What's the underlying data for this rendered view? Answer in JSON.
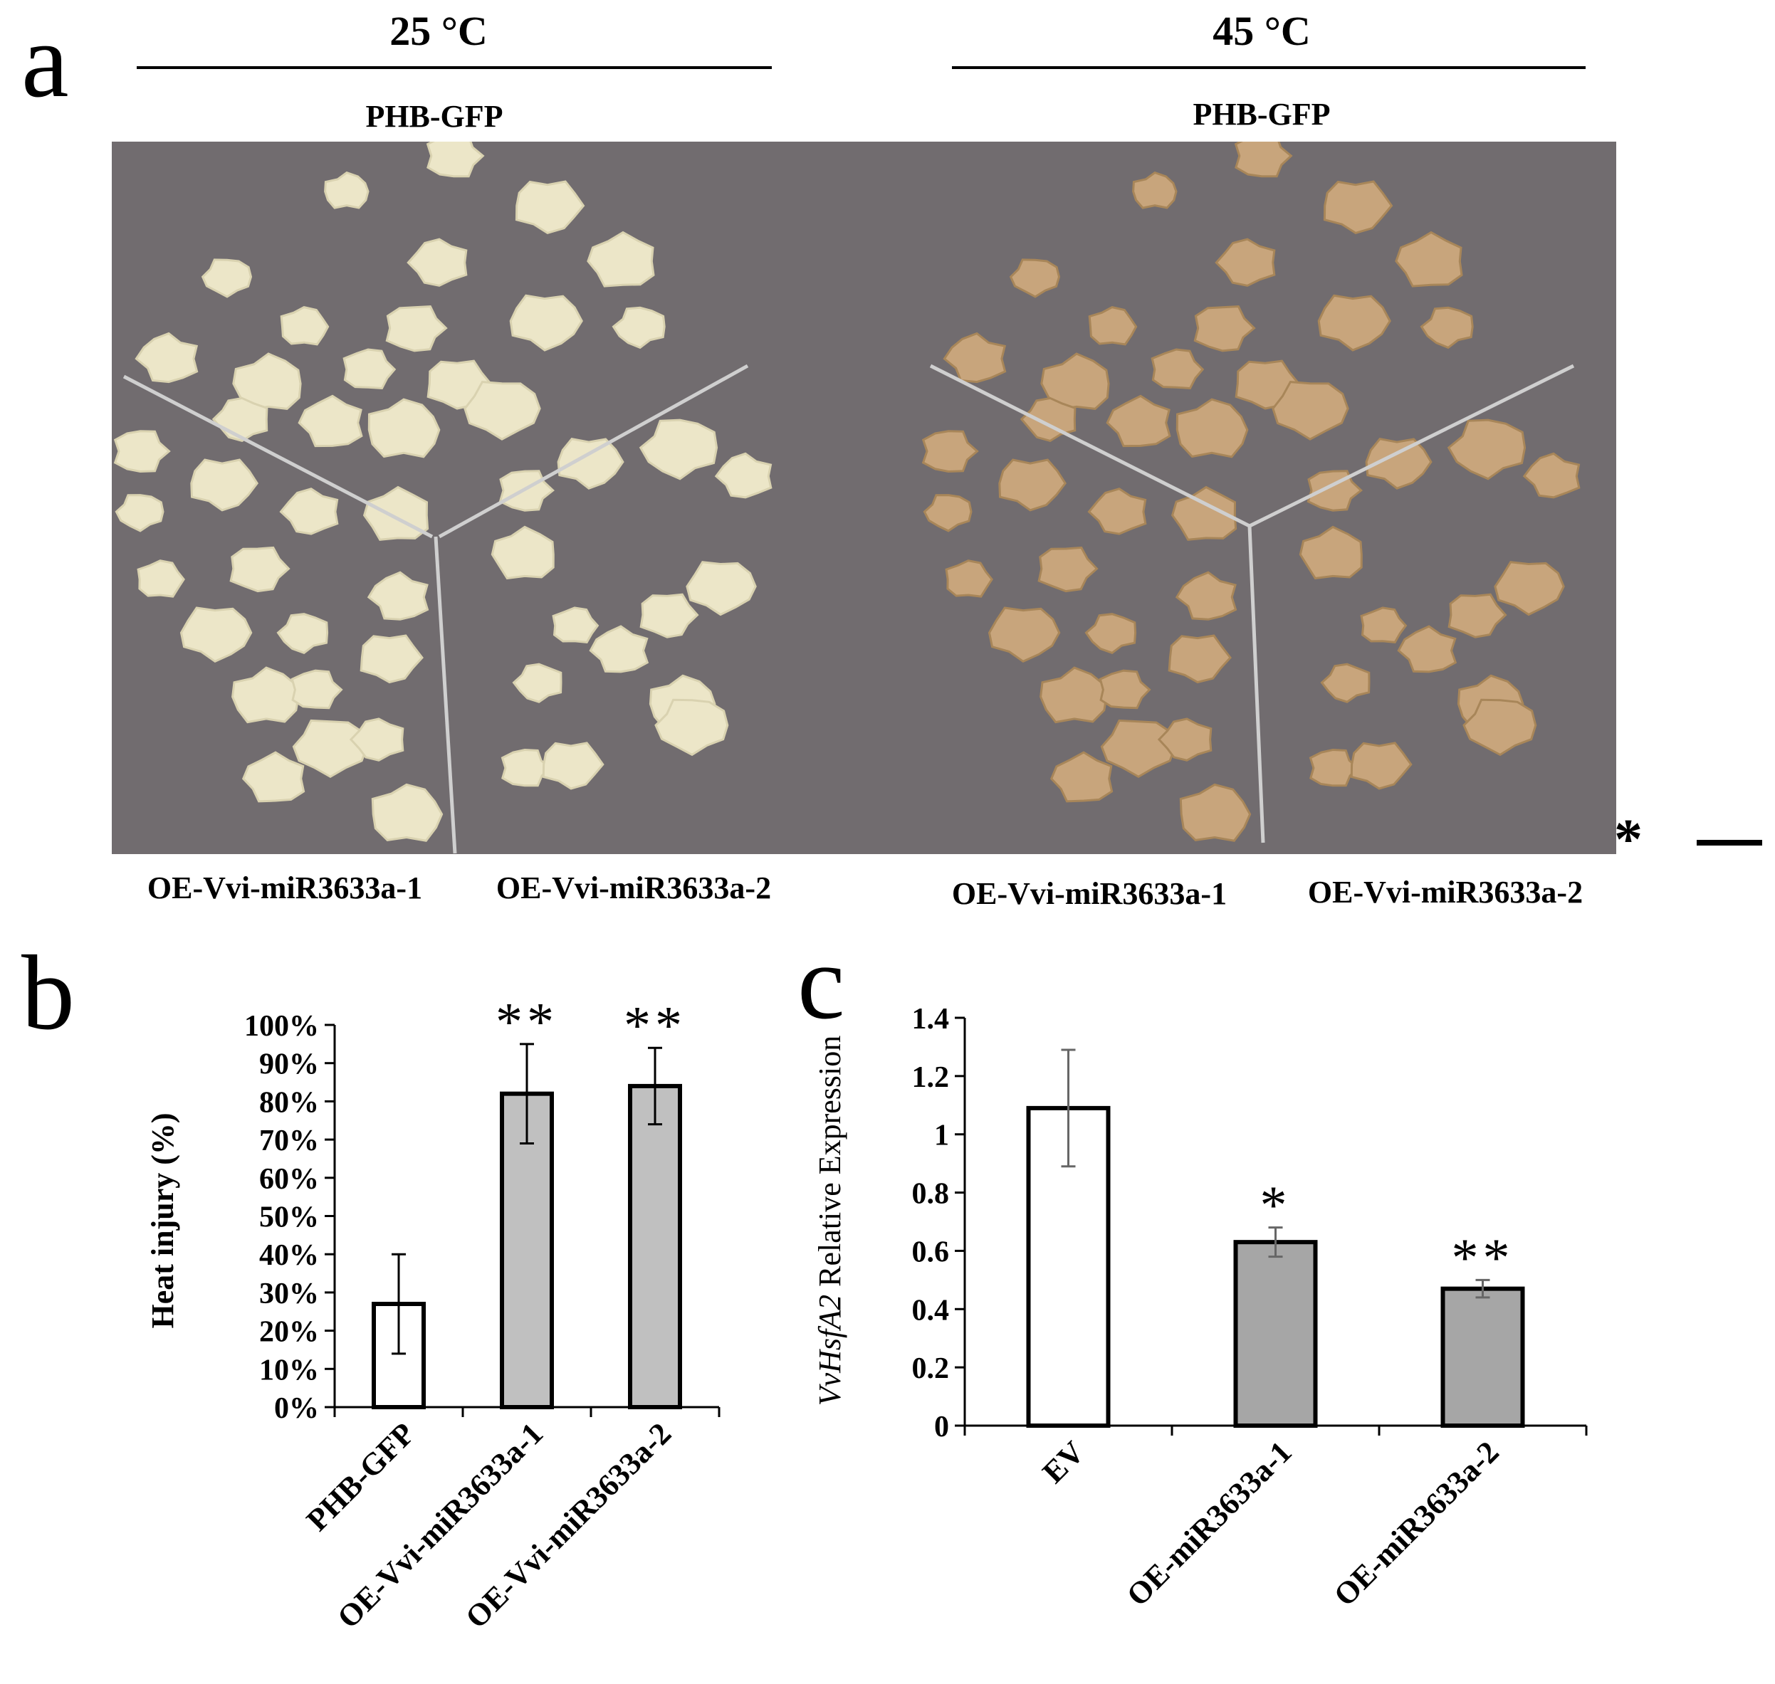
{
  "panel_a": {
    "letter": "a",
    "left": {
      "temperature": "25 °C",
      "top_label": "PHB-GFP",
      "bottom_left_label": "OE-Vvi-miR3633a-1",
      "bottom_right_label": "OE-Vvi-miR3633a-2"
    },
    "right": {
      "temperature": "45 °C",
      "top_label": "PHB-GFP",
      "bottom_left_label": "OE-Vvi-miR3633a-1",
      "bottom_right_label": "OE-Vvi-miR3633a-2"
    },
    "scale_marker": "*",
    "colors": {
      "background": "#716c6f",
      "callus_25C": "#ece6c8",
      "callus_45C": "#c8a57c"
    }
  },
  "panel_b": {
    "letter": "b"
  },
  "panel_c": {
    "letter": "c"
  },
  "chart_data": [
    {
      "type": "bar",
      "panel": "b",
      "title": "",
      "xlabel": "",
      "ylabel": "Heat injury  (%)",
      "ylim": [
        0,
        100
      ],
      "yticks": [
        "0%",
        "10%",
        "20%",
        "30%",
        "40%",
        "50%",
        "60%",
        "70%",
        "80%",
        "90%",
        "100%"
      ],
      "categories": [
        "PHB-GFP",
        "OE-Vvi-miR3633a-1",
        "OE-Vvi-miR3633a-2"
      ],
      "values": [
        27,
        82,
        84
      ],
      "errors": [
        13,
        13,
        10
      ],
      "significance": [
        "",
        "**",
        "**"
      ],
      "colors": [
        "#ffffff",
        "#c0c0c0",
        "#c0c0c0"
      ]
    },
    {
      "type": "bar",
      "panel": "c",
      "title": "",
      "xlabel": "",
      "ylabel_italic": "VvHsfA2",
      "ylabel": " Relative Expression",
      "ylim": [
        0,
        1.4
      ],
      "yticks": [
        "0",
        "0.2",
        "0.4",
        "0.6",
        "0.8",
        "1",
        "1.2",
        "1.4"
      ],
      "categories": [
        "EV",
        "OE-miR3633a-1",
        "OE-miR3633a-2"
      ],
      "values": [
        1.09,
        0.63,
        0.47
      ],
      "errors": [
        0.2,
        0.05,
        0.03
      ],
      "significance": [
        "",
        "*",
        "**"
      ],
      "colors": [
        "#ffffff",
        "#a6a6a6",
        "#a6a6a6"
      ]
    }
  ]
}
